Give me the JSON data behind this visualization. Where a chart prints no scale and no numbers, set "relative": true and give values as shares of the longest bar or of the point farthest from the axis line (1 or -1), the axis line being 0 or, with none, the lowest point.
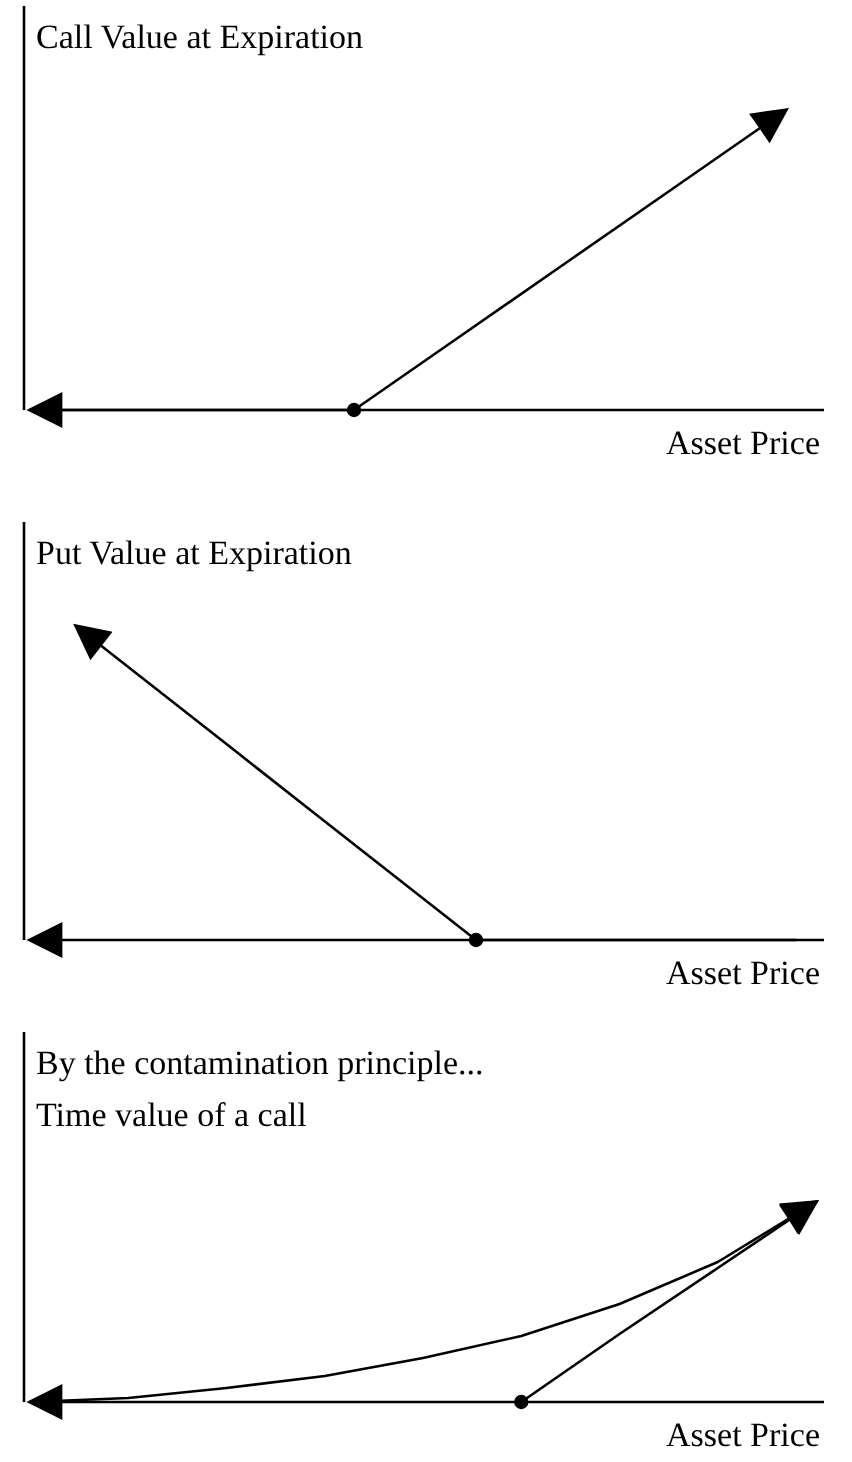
{
  "chart_data": [
    {
      "type": "line",
      "title": "Call Value at Expiration",
      "xlabel": "Asset Price",
      "relative": true,
      "categories": [
        null,
        null,
        null,
        null,
        null,
        null,
        null,
        null
      ],
      "series": [
        {
          "color": "#000000",
          "values": [
            0,
            0,
            0,
            0,
            0.25,
            0.5,
            0.75,
            1
          ]
        }
      ]
    },
    {
      "type": "line",
      "title": "Put Value at Expiration",
      "xlabel": "Asset Price",
      "relative": true,
      "categories": [
        null,
        null,
        null,
        null,
        null,
        null,
        null,
        null,
        null,
        null
      ],
      "series": [
        {
          "color": "#000000",
          "values": [
            1,
            0.8,
            0.6,
            0.4,
            0.2,
            0,
            0,
            0,
            0,
            0
          ]
        }
      ]
    },
    {
      "type": "line",
      "title": "By the contamination principle...",
      "subtitle": "Time value of a call",
      "xlabel": "Asset Price",
      "relative": true,
      "categories": [
        null,
        null,
        null,
        null,
        null,
        null,
        null,
        null,
        null
      ],
      "series": [
        {
          "color": "#000000",
          "values": [
            0,
            0.02,
            0.07,
            0.13,
            0.22,
            0.33,
            0.49,
            0.7,
            1
          ]
        },
        {
          "color": "#000000",
          "values": [
            null,
            null,
            null,
            null,
            null,
            0,
            0.34,
            0.67,
            1
          ]
        }
      ]
    }
  ]
}
